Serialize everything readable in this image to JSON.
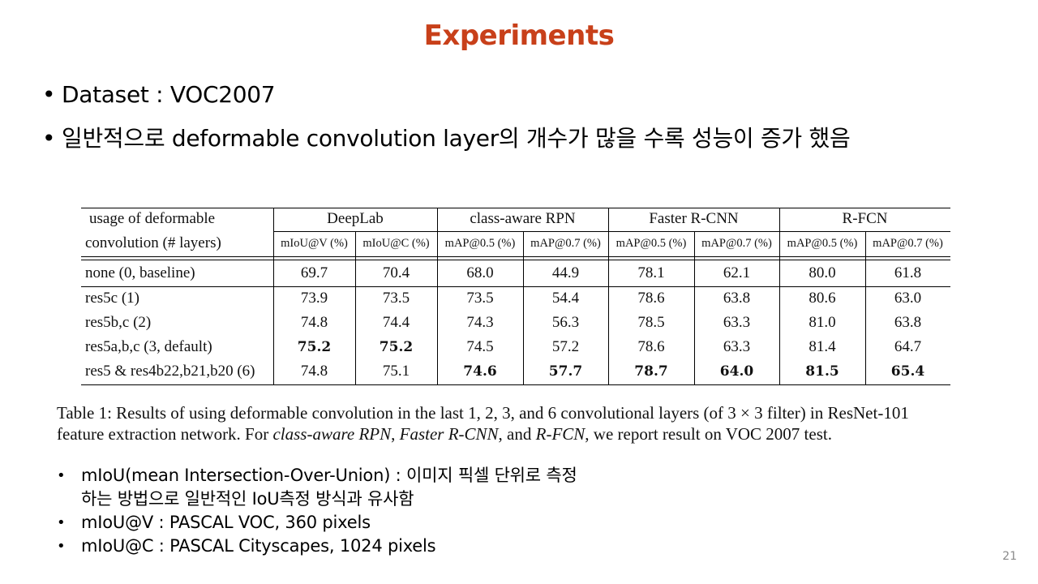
{
  "slide": {
    "title": "Experiments",
    "page_number": "21",
    "title_color": "#c8401a"
  },
  "bullets_top": [
    {
      "text": "Dataset : VOC2007"
    },
    {
      "text": "일반적으로 deformable convolution layer의 개수가 많을 수록 성능이 증가 했음"
    }
  ],
  "table": {
    "header_label_line1": "usage of deformable",
    "header_label_line2": "convolution (# layers)",
    "groups": [
      "DeepLab",
      "class-aware RPN",
      "Faster R-CNN",
      "R-FCN"
    ],
    "subheaders": [
      "mIoU@V (%)",
      "mIoU@C (%)",
      "mAP@0.5 (%)",
      "mAP@0.7 (%)",
      "mAP@0.5 (%)",
      "mAP@0.7 (%)",
      "mAP@0.5 (%)",
      "mAP@0.7 (%)"
    ],
    "rows": [
      {
        "label": "none (0, baseline)",
        "values": [
          "69.7",
          "70.4",
          "68.0",
          "44.9",
          "78.1",
          "62.1",
          "80.0",
          "61.8"
        ],
        "bold": [
          false,
          false,
          false,
          false,
          false,
          false,
          false,
          false
        ]
      },
      {
        "label": "res5c (1)",
        "values": [
          "73.9",
          "73.5",
          "73.5",
          "54.4",
          "78.6",
          "63.8",
          "80.6",
          "63.0"
        ],
        "bold": [
          false,
          false,
          false,
          false,
          false,
          false,
          false,
          false
        ]
      },
      {
        "label": "res5b,c (2)",
        "values": [
          "74.8",
          "74.4",
          "74.3",
          "56.3",
          "78.5",
          "63.3",
          "81.0",
          "63.8"
        ],
        "bold": [
          false,
          false,
          false,
          false,
          false,
          false,
          false,
          false
        ]
      },
      {
        "label": "res5a,b,c (3, default)",
        "values": [
          "75.2",
          "75.2",
          "74.5",
          "57.2",
          "78.6",
          "63.3",
          "81.4",
          "64.7"
        ],
        "bold": [
          true,
          true,
          false,
          false,
          false,
          false,
          false,
          false
        ]
      },
      {
        "label": "res5 & res4b22,b21,b20 (6)",
        "values": [
          "74.8",
          "75.1",
          "74.6",
          "57.7",
          "78.7",
          "64.0",
          "81.5",
          "65.4"
        ],
        "bold": [
          false,
          false,
          true,
          true,
          true,
          true,
          true,
          true
        ]
      }
    ]
  },
  "caption": {
    "part1": "Table 1: Results of using deformable convolution in the last 1, 2, 3, and 6 convolutional layers (of 3 × 3 filter) in ResNet-101",
    "part2": "feature extraction network. For ",
    "italic1": "class-aware RPN",
    "sep1": ", ",
    "italic2": "Faster R-CNN",
    "sep2": ", and ",
    "italic3": "R-FCN",
    "part3": ", we report result on VOC 2007 test."
  },
  "bullets_bottom": [
    {
      "line1": "mIoU(mean Intersection-Over-Union) : 이미지 픽셀 단위로 측정",
      "line2": "하는 방법으로 일반적인 IoU측정 방식과 유사함"
    },
    {
      "line1": "mIoU@V : PASCAL VOC, 360 pixels"
    },
    {
      "line1": "mIoU@C : PASCAL Cityscapes, 1024 pixels"
    }
  ]
}
